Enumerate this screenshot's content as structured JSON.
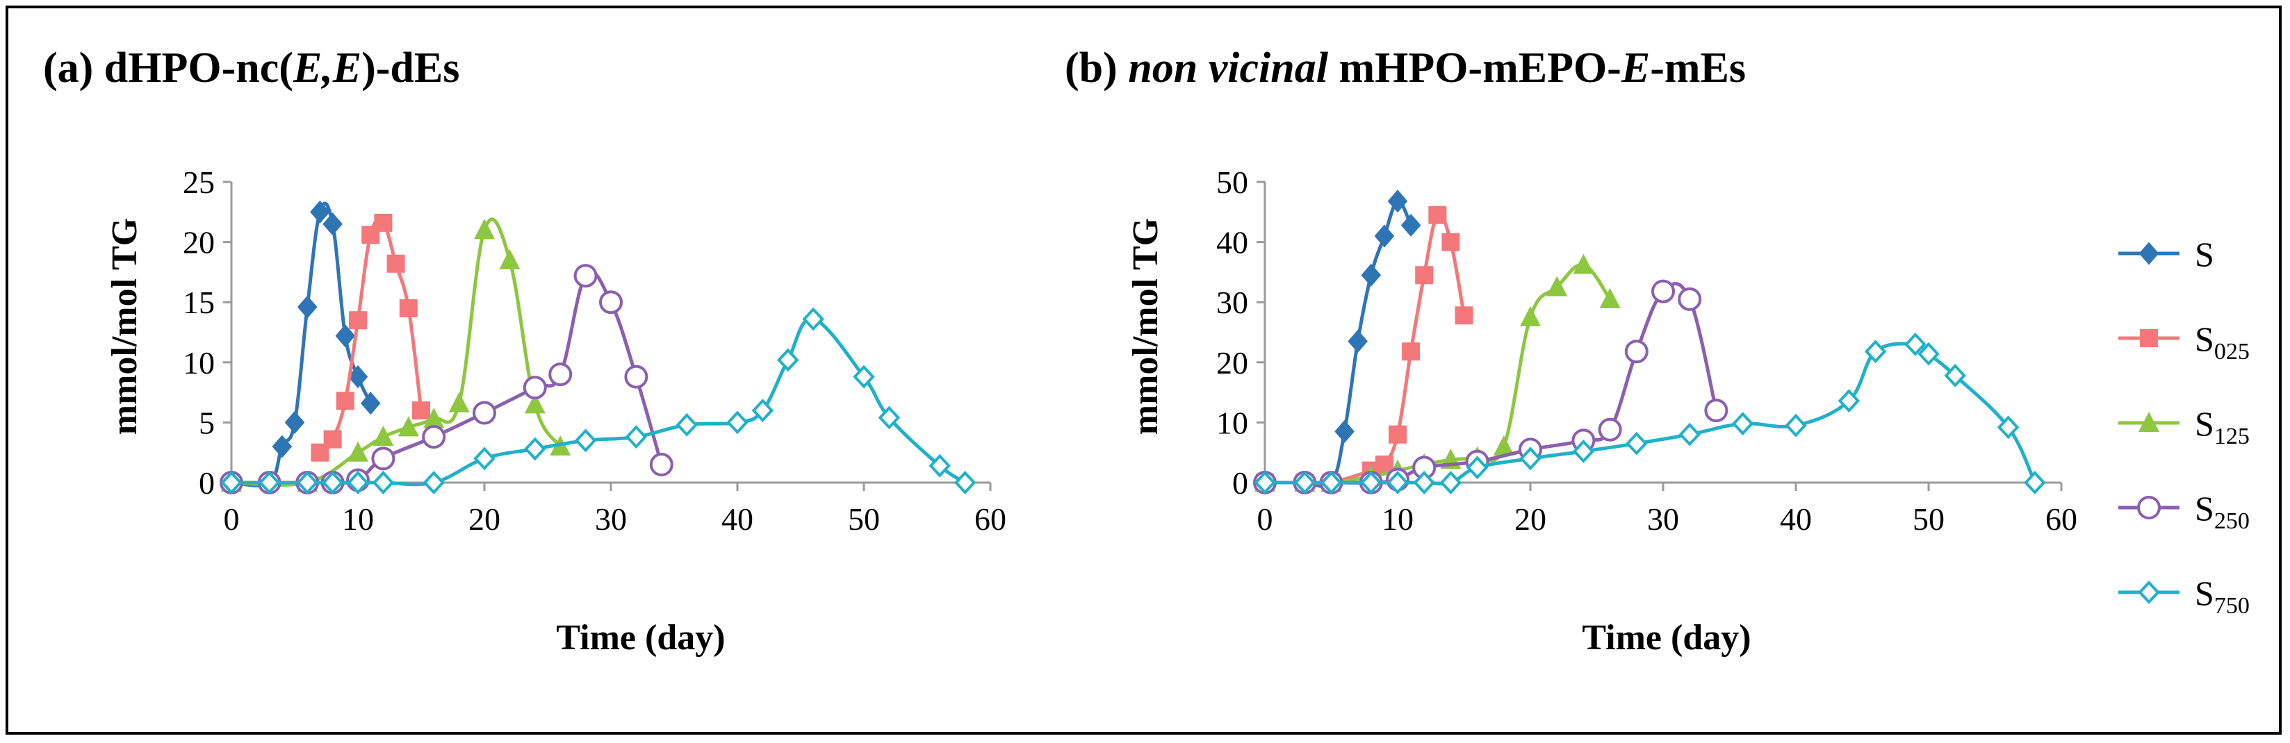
{
  "chart_data": [
    {
      "type": "line",
      "title_parts": [
        {
          "text": "(a) dHPO-nc(",
          "italic": false
        },
        {
          "text": "E,E",
          "italic": true
        },
        {
          "text": ")-dEs",
          "italic": false
        }
      ],
      "xlabel": "Time (day)",
      "ylabel": "mmol/mol TG",
      "xlim": [
        0,
        60
      ],
      "ylim": [
        0,
        25
      ],
      "xticks": [
        "0",
        "10",
        "20",
        "30",
        "40",
        "50",
        "60"
      ],
      "yticks": [
        "0",
        "5",
        "10",
        "15",
        "20",
        "25"
      ],
      "grid": false,
      "series": [
        {
          "name": "S",
          "color": "#2E75B6",
          "marker": "diamond-filled",
          "x": [
            0,
            3,
            4,
            5,
            6,
            7,
            8,
            9,
            10,
            11
          ],
          "y": [
            0,
            0,
            3,
            5,
            14.6,
            22.5,
            21.5,
            12.2,
            8.8,
            6.6
          ]
        },
        {
          "name": "S025",
          "color": "#F4777A",
          "marker": "square-filled",
          "x": [
            7,
            8,
            9,
            10,
            11,
            12,
            13,
            14,
            15
          ],
          "y": [
            2.5,
            3.6,
            6.8,
            13.5,
            20.6,
            21.6,
            18.2,
            14.5,
            6
          ]
        },
        {
          "name": "S125",
          "color": "#8DC63F",
          "marker": "triangle-filled",
          "x": [
            0,
            6,
            10,
            12,
            14,
            16,
            18,
            20,
            22,
            24,
            26
          ],
          "y": [
            0,
            0,
            2.5,
            3.8,
            4.6,
            5.3,
            6.6,
            21,
            18.5,
            6.5,
            3
          ]
        },
        {
          "name": "S250",
          "color": "#8B5FB0",
          "marker": "circle-open",
          "x": [
            0,
            3,
            6,
            8,
            10,
            12,
            16,
            20,
            24,
            26,
            28,
            30,
            32,
            34
          ],
          "y": [
            0,
            0,
            0,
            0,
            0.2,
            2,
            3.8,
            5.8,
            7.9,
            9,
            17.2,
            15,
            8.8,
            1.5
          ]
        },
        {
          "name": "S750",
          "color": "#1FB1C9",
          "marker": "diamond-open",
          "x": [
            0,
            3,
            6,
            8,
            10,
            12,
            16,
            20,
            24,
            28,
            32,
            36,
            40,
            42,
            44,
            46,
            50,
            52,
            56,
            58
          ],
          "y": [
            0,
            0,
            0,
            0,
            0,
            0,
            0,
            2,
            2.8,
            3.5,
            3.8,
            4.8,
            5,
            6,
            10.2,
            13.6,
            8.8,
            5.4,
            1.4,
            0
          ]
        }
      ]
    },
    {
      "type": "line",
      "title_parts": [
        {
          "text": "(b) ",
          "italic": false
        },
        {
          "text": "non vicinal",
          "italic": true
        },
        {
          "text": " mHPO-mEPO-",
          "italic": false
        },
        {
          "text": "E",
          "italic": true
        },
        {
          "text": "-mEs",
          "italic": false
        }
      ],
      "xlabel": "Time (day)",
      "ylabel": "mmol/mol TG",
      "xlim": [
        0,
        60
      ],
      "ylim": [
        0,
        50
      ],
      "xticks": [
        "0",
        "10",
        "20",
        "30",
        "40",
        "50",
        "60"
      ],
      "yticks": [
        "0",
        "10",
        "20",
        "30",
        "40",
        "50"
      ],
      "grid": false,
      "series": [
        {
          "name": "S",
          "color": "#2E75B6",
          "marker": "diamond-filled",
          "x": [
            0,
            3,
            5,
            6,
            7,
            8,
            9,
            10,
            11
          ],
          "y": [
            0,
            0,
            0,
            8.5,
            23.5,
            34.5,
            41,
            46.8,
            42.8
          ]
        },
        {
          "name": "S025",
          "color": "#F4777A",
          "marker": "square-filled",
          "x": [
            0,
            3,
            5,
            8,
            9,
            10,
            11,
            12,
            13,
            14,
            15
          ],
          "y": [
            0,
            0,
            0,
            2,
            3,
            8,
            21.8,
            34.5,
            44.5,
            40,
            27.8
          ]
        },
        {
          "name": "S125",
          "color": "#8DC63F",
          "marker": "triangle-filled",
          "x": [
            0,
            3,
            5,
            8,
            10,
            12,
            14,
            16,
            18,
            20,
            22,
            24,
            26
          ],
          "y": [
            0,
            0,
            0,
            1,
            2,
            3,
            3.8,
            4.2,
            6,
            27.5,
            32.5,
            36.2,
            30.5
          ]
        },
        {
          "name": "S250",
          "color": "#8B5FB0",
          "marker": "circle-open",
          "x": [
            0,
            3,
            5,
            8,
            10,
            12,
            16,
            20,
            24,
            26,
            28,
            30,
            32,
            34
          ],
          "y": [
            0,
            0,
            0,
            0,
            0.5,
            2.5,
            3.5,
            5.5,
            7,
            8.8,
            21.8,
            31.8,
            30.5,
            12
          ]
        },
        {
          "name": "S750",
          "color": "#1FB1C9",
          "marker": "diamond-open",
          "x": [
            0,
            3,
            5,
            8,
            10,
            12,
            14,
            16,
            20,
            24,
            28,
            32,
            36,
            40,
            44,
            46,
            49,
            50,
            52,
            56,
            58
          ],
          "y": [
            0,
            0,
            0,
            0,
            0,
            0,
            0,
            2.5,
            4,
            5.2,
            6.5,
            8,
            9.8,
            9.5,
            13.6,
            21.8,
            23,
            21.4,
            17.8,
            9.2,
            0
          ]
        }
      ]
    }
  ],
  "legend": {
    "placement": "right",
    "entries": [
      {
        "label": "S",
        "sub": ""
      },
      {
        "label": "S",
        "sub": "025"
      },
      {
        "label": "S",
        "sub": "125"
      },
      {
        "label": "S",
        "sub": "250"
      },
      {
        "label": "S",
        "sub": "750"
      }
    ]
  }
}
